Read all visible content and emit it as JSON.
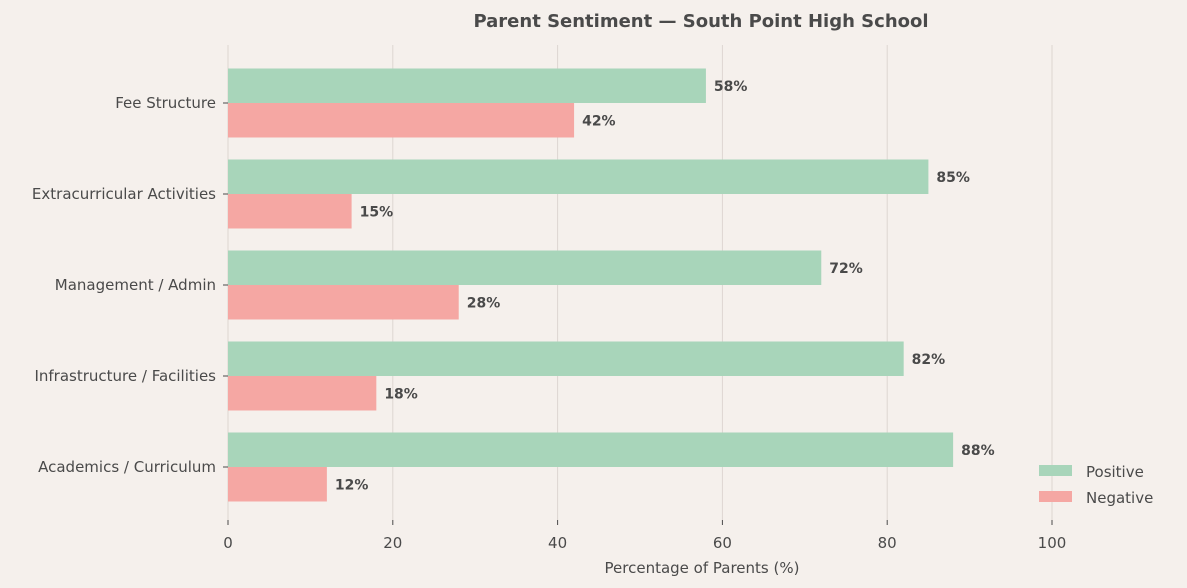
{
  "chart_data": {
    "type": "bar",
    "orientation": "horizontal",
    "title": "Parent Sentiment — South Point High School",
    "xlabel": "Percentage of Parents (%)",
    "ylabel": "",
    "xlim": [
      0,
      115
    ],
    "xticks": [
      0,
      20,
      40,
      60,
      80,
      100
    ],
    "grid": "vertical",
    "legend_position": "lower-right",
    "categories": [
      "Fee Structure",
      "Extracurricular Activities",
      "Management / Admin",
      "Infrastructure / Facilities",
      "Academics / Curriculum"
    ],
    "series": [
      {
        "name": "Positive",
        "color": "#a8d5ba",
        "values": [
          58,
          85,
          72,
          82,
          88
        ],
        "labels": [
          "58%",
          "85%",
          "72%",
          "82%",
          "88%"
        ]
      },
      {
        "name": "Negative",
        "color": "#f5a7a3",
        "values": [
          42,
          15,
          28,
          18,
          12
        ],
        "labels": [
          "42%",
          "15%",
          "28%",
          "18%",
          "12%"
        ]
      }
    ],
    "background": "#f5f0ec",
    "text_color": "#4a4a4a"
  }
}
